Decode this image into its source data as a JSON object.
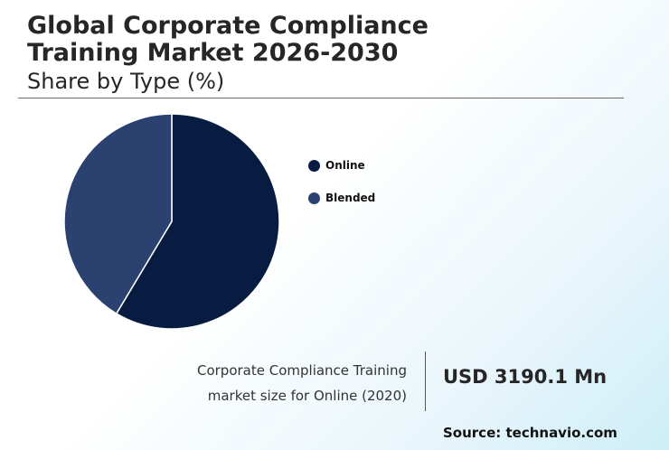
{
  "header": {
    "title_line1": "Global Corporate Compliance",
    "title_line2": "Training Market 2026-2030",
    "subtitle": "Share by Type (%)"
  },
  "chart_data": {
    "type": "pie",
    "categories": [
      "Online",
      "Blended"
    ],
    "values": [
      58.6,
      41.4
    ],
    "colors": [
      "#081c42",
      "#2b416f"
    ],
    "start_angle_deg": 0,
    "direction": "clockwise",
    "legend_position": "right"
  },
  "callout": {
    "caption_line1": "Corporate Compliance Training",
    "caption_line2": "market size for Online (2020)",
    "value": "USD 3190.1 Mn"
  },
  "source": "Source: technavio.com"
}
